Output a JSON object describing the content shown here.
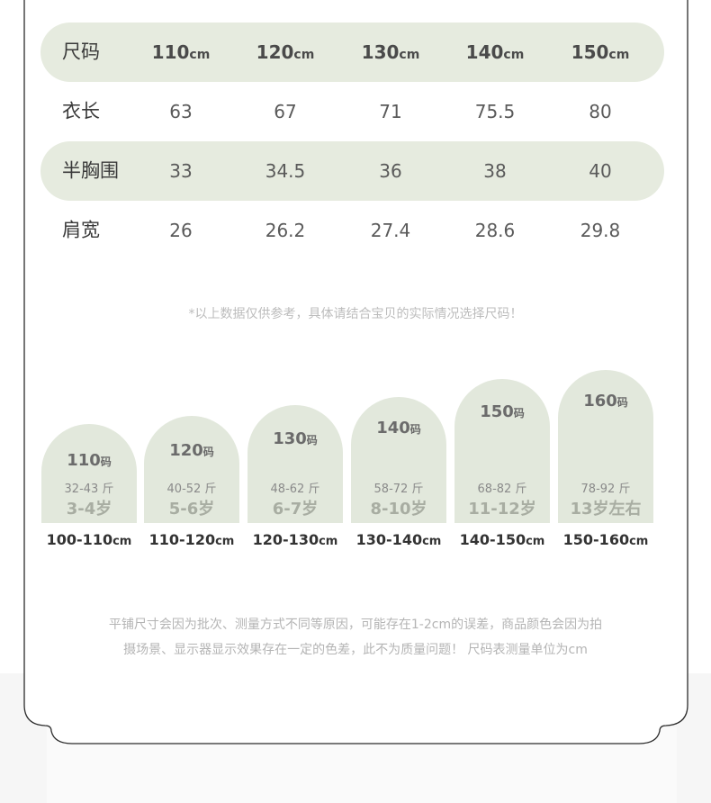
{
  "table": {
    "header": {
      "label": "尺码",
      "sizes": [
        "110",
        "120",
        "130",
        "140",
        "150"
      ],
      "unit": "cm"
    },
    "rows": [
      {
        "label": "衣长",
        "values": [
          "63",
          "67",
          "71",
          "75.5",
          "80"
        ]
      },
      {
        "label": "半胸围",
        "values": [
          "33",
          "34.5",
          "36",
          "38",
          "40"
        ]
      },
      {
        "label": "肩宽",
        "values": [
          "26",
          "26.2",
          "27.4",
          "28.6",
          "29.8"
        ]
      }
    ]
  },
  "note": "*以上数据仅供参考，具体请结合宝贝的实际情况选择尺码！",
  "guide": {
    "size_unit": "码",
    "height_unit": "cm",
    "items": [
      {
        "size": "110",
        "weight": "32-43 斤",
        "age": "3-4岁",
        "height": "100-110"
      },
      {
        "size": "120",
        "weight": "40-52 斤",
        "age": "5-6岁",
        "height": "110-120"
      },
      {
        "size": "130",
        "weight": "48-62 斤",
        "age": "6-7岁",
        "height": "120-130"
      },
      {
        "size": "140",
        "weight": "58-72 斤",
        "age": "8-10岁",
        "height": "130-140"
      },
      {
        "size": "150",
        "weight": "68-82 斤",
        "age": "11-12岁",
        "height": "140-150"
      },
      {
        "size": "160",
        "weight": "78-92 斤",
        "age": "13岁左右",
        "height": "150-160"
      }
    ]
  },
  "footer": {
    "line1": "平铺尺寸会因为批次、测量方式不同等原因，可能存在1-2cm的误差，商品颜色会因为拍",
    "line2": "摄场景、显示器显示效果存在一定的色差，此不为质量问题！ 尺码表测量单位为cm"
  },
  "colors": {
    "highlight_row": "#e6ebdf",
    "arch": "#e2e8dc"
  }
}
